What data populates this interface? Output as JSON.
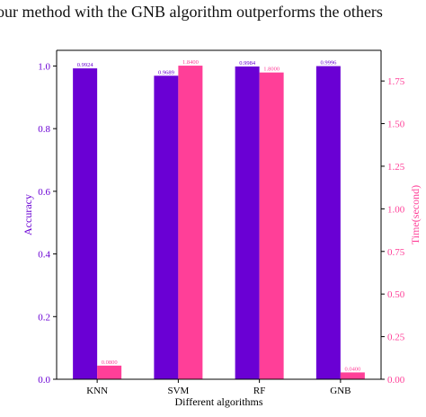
{
  "caption": "our method with the GNB algorithm outperforms the others",
  "colors": {
    "accuracy": "#6a00d4",
    "time": "#ff3f98",
    "axis": "#000000",
    "left_axis_text": "#6a00d4",
    "right_axis_text": "#ff3f98"
  },
  "chart_data": {
    "type": "bar",
    "categories": [
      "KNN",
      "SVM",
      "RF",
      "GNB"
    ],
    "series": [
      {
        "key": "accuracy",
        "axis": "left",
        "values": [
          0.9924,
          0.9689,
          0.9984,
          0.9996
        ],
        "labels": [
          "0.9924",
          "0.9689",
          "0.9984",
          "0.9996"
        ]
      },
      {
        "key": "time",
        "axis": "right",
        "values": [
          0.08,
          1.84,
          1.8,
          0.04
        ],
        "labels": [
          "0.0800",
          "1.8400",
          "1.8000",
          "0.0400"
        ]
      }
    ],
    "xlabel": "Different algorithms",
    "ylabel": "Accuracy",
    "y2label": "Time(second)",
    "ylim": [
      0,
      1.05
    ],
    "y2lim": [
      0,
      1.93
    ],
    "yticks": [
      "0.0",
      "0.2",
      "0.4",
      "0.6",
      "0.8",
      "1.0"
    ],
    "y2ticks": [
      "0.00",
      "0.25",
      "0.50",
      "0.75",
      "1.00",
      "1.25",
      "1.50",
      "1.75"
    ],
    "grid": false,
    "legend": "none"
  }
}
